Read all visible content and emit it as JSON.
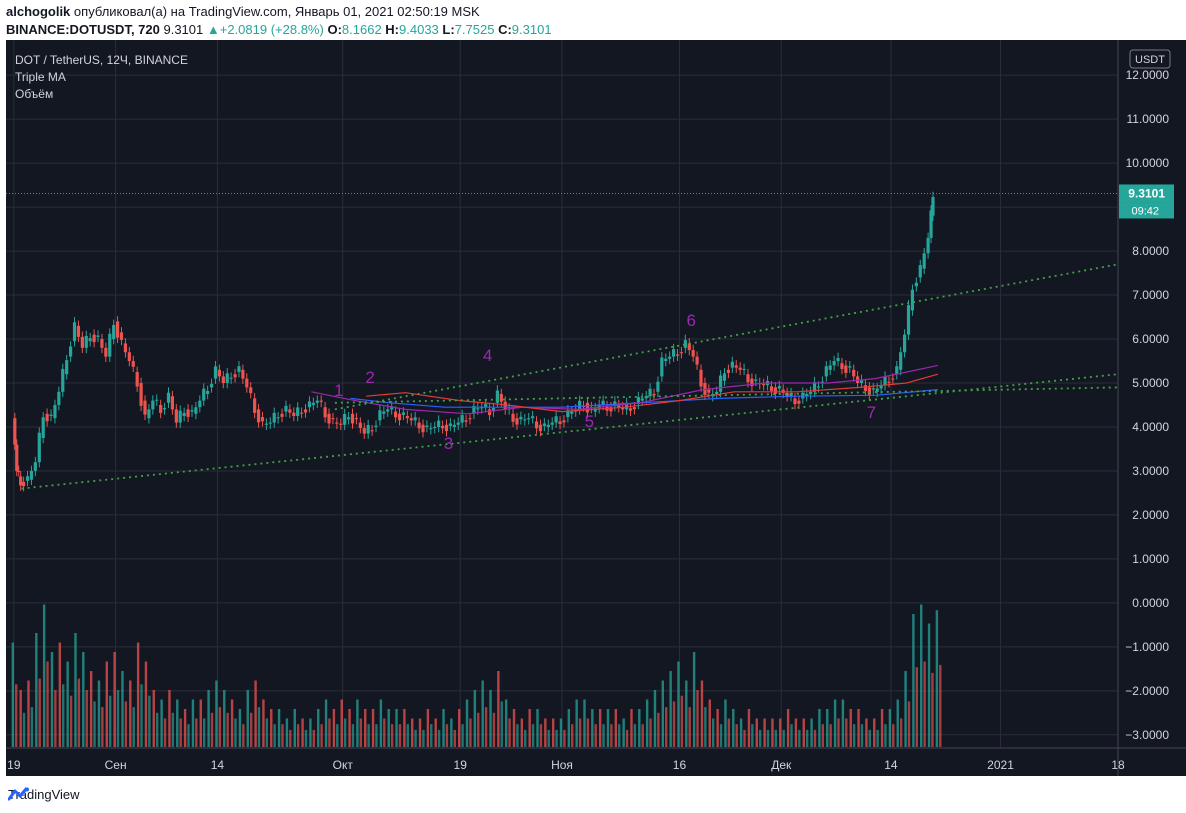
{
  "header": {
    "author": "alchogolik",
    "published_text": "опубликовал(а) на TradingView.com, Январь 01, 2021 02:50:19 MSK",
    "symbol": "BINANCE:DOTUSDT, 720",
    "last": "9.3101",
    "change": "▲+2.0819 (+28.8%)",
    "o_label": "O:",
    "o": "8.1662",
    "h_label": "H:",
    "h": "9.4033",
    "l_label": "L:",
    "l": "7.7525",
    "c_label": "C:",
    "c": "9.3101"
  },
  "legend": {
    "title": "DOT / TetherUS, 12Ч, BINANCE",
    "indicator1": "Triple MA",
    "indicator2": "Объём"
  },
  "colors": {
    "background": "#131722",
    "grid": "#2a2e39",
    "up": "#26a69a",
    "down": "#ef5350",
    "ma_purple": "#9c27b0",
    "ma_red": "#e53935",
    "ma_blue": "#2962ff",
    "trendline": "#43a047",
    "wave_label": "#9c27b0",
    "price_tag": "#26a69a"
  },
  "icons": {
    "logo": "tradingview-logo-icon"
  },
  "footer": {
    "brand": "TradingView"
  },
  "chart_data": {
    "type": "candlestick",
    "currency_badge": "USDT",
    "y_tick_labels": [
      "12.0000",
      "11.0000",
      "10.0000",
      "9.0000",
      "8.0000",
      "7.0000",
      "6.0000",
      "5.0000",
      "4.0000",
      "3.0000",
      "2.0000",
      "1.0000",
      "0.0000",
      "−1.0000",
      "−2.0000",
      "−3.0000"
    ],
    "y_ticks": [
      12,
      11,
      10,
      9,
      8,
      7,
      6,
      5,
      4,
      3,
      2,
      1,
      0,
      -1,
      -2,
      -3
    ],
    "ylim": [
      -3.3,
      12.8
    ],
    "x_tick_labels": [
      "19",
      "Сен",
      "14",
      "Окт",
      "19",
      "Ноя",
      "16",
      "Дек",
      "14",
      "2021",
      "18"
    ],
    "x_tick_days": [
      0,
      13,
      26,
      42,
      57,
      70,
      85,
      98,
      112,
      126,
      141
    ],
    "x_range_days": [
      -1,
      141
    ],
    "last_price_label": "9.3101",
    "last_price": 9.3101,
    "countdown_label": "09:42",
    "ohlc_points": [
      [
        0,
        4.2
      ],
      [
        0.5,
        3.0
      ],
      [
        1,
        2.75
      ],
      [
        2,
        2.8
      ],
      [
        3,
        3.2
      ],
      [
        4,
        4.3
      ],
      [
        5,
        4.2
      ],
      [
        6,
        4.8
      ],
      [
        7,
        5.6
      ],
      [
        8,
        6.3
      ],
      [
        9,
        5.8
      ],
      [
        10,
        6.1
      ],
      [
        11,
        6.0
      ],
      [
        12,
        5.6
      ],
      [
        13,
        6.4
      ],
      [
        14,
        5.9
      ],
      [
        15,
        5.5
      ],
      [
        16,
        5.0
      ],
      [
        17,
        4.2
      ],
      [
        18,
        4.6
      ],
      [
        19,
        4.4
      ],
      [
        20,
        4.7
      ],
      [
        21,
        4.1
      ],
      [
        22,
        4.4
      ],
      [
        23,
        4.3
      ],
      [
        24,
        4.6
      ],
      [
        25,
        4.9
      ],
      [
        26,
        5.3
      ],
      [
        27,
        5.0
      ],
      [
        28,
        5.2
      ],
      [
        29,
        5.3
      ],
      [
        30,
        4.9
      ],
      [
        31,
        4.4
      ],
      [
        32,
        4.05
      ],
      [
        33,
        4.1
      ],
      [
        34,
        4.3
      ],
      [
        35,
        4.4
      ],
      [
        36,
        4.25
      ],
      [
        37,
        4.4
      ],
      [
        38,
        4.5
      ],
      [
        39,
        4.6
      ],
      [
        40,
        4.3
      ],
      [
        41,
        4.1
      ],
      [
        42,
        4.05
      ],
      [
        43,
        4.3
      ],
      [
        44,
        4.1
      ],
      [
        45,
        3.85
      ],
      [
        46,
        4.0
      ],
      [
        47,
        4.3
      ],
      [
        48,
        4.4
      ],
      [
        49,
        4.3
      ],
      [
        50,
        4.25
      ],
      [
        51,
        4.15
      ],
      [
        52,
        4.05
      ],
      [
        53,
        3.95
      ],
      [
        54,
        4.0
      ],
      [
        55,
        4.05
      ],
      [
        56,
        4.0
      ],
      [
        57,
        4.1
      ],
      [
        58,
        4.2
      ],
      [
        59,
        4.4
      ],
      [
        60,
        4.45
      ],
      [
        61,
        4.35
      ],
      [
        62,
        4.75
      ],
      [
        63,
        4.4
      ],
      [
        64,
        4.2
      ],
      [
        65,
        4.15
      ],
      [
        66,
        4.2
      ],
      [
        67,
        4.05
      ],
      [
        68,
        4.0
      ],
      [
        69,
        4.1
      ],
      [
        70,
        4.15
      ],
      [
        71,
        4.3
      ],
      [
        72,
        4.4
      ],
      [
        73,
        4.55
      ],
      [
        74,
        4.35
      ],
      [
        75,
        4.5
      ],
      [
        76,
        4.45
      ],
      [
        77,
        4.5
      ],
      [
        78,
        4.4
      ],
      [
        79,
        4.45
      ],
      [
        80,
        4.6
      ],
      [
        81,
        4.7
      ],
      [
        82,
        4.8
      ],
      [
        83,
        5.5
      ],
      [
        84,
        5.6
      ],
      [
        85,
        5.7
      ],
      [
        86,
        5.9
      ],
      [
        87,
        5.6
      ],
      [
        88,
        5.0
      ],
      [
        89,
        4.7
      ],
      [
        90,
        4.8
      ],
      [
        91,
        5.3
      ],
      [
        92,
        5.4
      ],
      [
        93,
        5.3
      ],
      [
        94,
        5.1
      ],
      [
        95,
        5.0
      ],
      [
        96,
        4.95
      ],
      [
        97,
        4.9
      ],
      [
        98,
        4.85
      ],
      [
        99,
        4.7
      ],
      [
        100,
        4.6
      ],
      [
        101,
        4.7
      ],
      [
        102,
        4.8
      ],
      [
        103,
        5.0
      ],
      [
        104,
        5.3
      ],
      [
        105,
        5.5
      ],
      [
        106,
        5.4
      ],
      [
        107,
        5.3
      ],
      [
        108,
        5.0
      ],
      [
        109,
        4.9
      ],
      [
        110,
        4.8
      ],
      [
        111,
        4.95
      ],
      [
        112,
        5.1
      ],
      [
        113,
        5.3
      ],
      [
        114,
        6.1
      ],
      [
        115,
        7.2
      ],
      [
        116,
        7.6
      ],
      [
        117,
        8.3
      ],
      [
        117.5,
        9.31
      ]
    ],
    "volume_series": [
      0.55,
      0.3,
      0.35,
      0.6,
      0.75,
      0.5,
      0.55,
      0.45,
      0.6,
      0.5,
      0.4,
      0.35,
      0.45,
      0.5,
      0.4,
      0.35,
      0.55,
      0.45,
      0.3,
      0.25,
      0.3,
      0.25,
      0.2,
      0.25,
      0.25,
      0.3,
      0.35,
      0.3,
      0.25,
      0.2,
      0.3,
      0.35,
      0.25,
      0.2,
      0.2,
      0.15,
      0.2,
      0.15,
      0.15,
      0.2,
      0.25,
      0.2,
      0.25,
      0.2,
      0.25,
      0.2,
      0.2,
      0.25,
      0.2,
      0.2,
      0.2,
      0.15,
      0.15,
      0.2,
      0.15,
      0.2,
      0.15,
      0.2,
      0.25,
      0.3,
      0.35,
      0.3,
      0.4,
      0.25,
      0.2,
      0.15,
      0.2,
      0.2,
      0.15,
      0.15,
      0.15,
      0.2,
      0.25,
      0.25,
      0.2,
      0.2,
      0.2,
      0.2,
      0.15,
      0.2,
      0.2,
      0.25,
      0.3,
      0.35,
      0.4,
      0.45,
      0.35,
      0.5,
      0.35,
      0.25,
      0.2,
      0.25,
      0.2,
      0.15,
      0.2,
      0.15,
      0.15,
      0.15,
      0.15,
      0.2,
      0.15,
      0.15,
      0.15,
      0.2,
      0.2,
      0.25,
      0.25,
      0.2,
      0.2,
      0.15,
      0.15,
      0.2,
      0.2,
      0.25,
      0.4,
      0.7,
      0.75,
      0.65,
      0.72
    ],
    "ma_slow": [
      [
        43,
        4.65
      ],
      [
        48,
        4.55
      ],
      [
        55,
        4.45
      ],
      [
        62,
        4.45
      ],
      [
        70,
        4.45
      ],
      [
        80,
        4.55
      ],
      [
        90,
        4.65
      ],
      [
        100,
        4.7
      ],
      [
        110,
        4.72
      ],
      [
        118,
        4.85
      ]
    ],
    "ma_mid": [
      [
        38,
        4.8
      ],
      [
        43,
        4.62
      ],
      [
        50,
        4.4
      ],
      [
        58,
        4.3
      ],
      [
        65,
        4.45
      ],
      [
        72,
        4.4
      ],
      [
        80,
        4.55
      ],
      [
        88,
        4.85
      ],
      [
        96,
        5.0
      ],
      [
        104,
        5.0
      ],
      [
        110,
        5.1
      ],
      [
        118,
        5.4
      ]
    ],
    "ma_red": [
      [
        45,
        4.7
      ],
      [
        50,
        4.78
      ],
      [
        57,
        4.6
      ],
      [
        63,
        4.5
      ],
      [
        70,
        4.35
      ],
      [
        78,
        4.45
      ],
      [
        85,
        4.6
      ],
      [
        92,
        4.8
      ],
      [
        100,
        4.8
      ],
      [
        108,
        4.9
      ],
      [
        114,
        5.0
      ],
      [
        118,
        5.2
      ]
    ],
    "trendlines": [
      {
        "from": [
          1,
          2.6
        ],
        "to": [
          141,
          5.2
        ]
      },
      {
        "from": [
          41,
          4.4
        ],
        "to": [
          141,
          7.7
        ]
      },
      {
        "from": [
          41,
          4.55
        ],
        "to": [
          141,
          4.9
        ]
      }
    ],
    "wave_labels": [
      {
        "text": "1",
        "x": 41.5,
        "y": 4.7
      },
      {
        "text": "2",
        "x": 45.5,
        "y": 5.0
      },
      {
        "text": "3",
        "x": 55.5,
        "y": 3.5
      },
      {
        "text": "4",
        "x": 60.5,
        "y": 5.5
      },
      {
        "text": "5",
        "x": 73.5,
        "y": 4.0
      },
      {
        "text": "6",
        "x": 86.5,
        "y": 6.3
      },
      {
        "text": "7",
        "x": 109.5,
        "y": 4.2
      }
    ]
  }
}
